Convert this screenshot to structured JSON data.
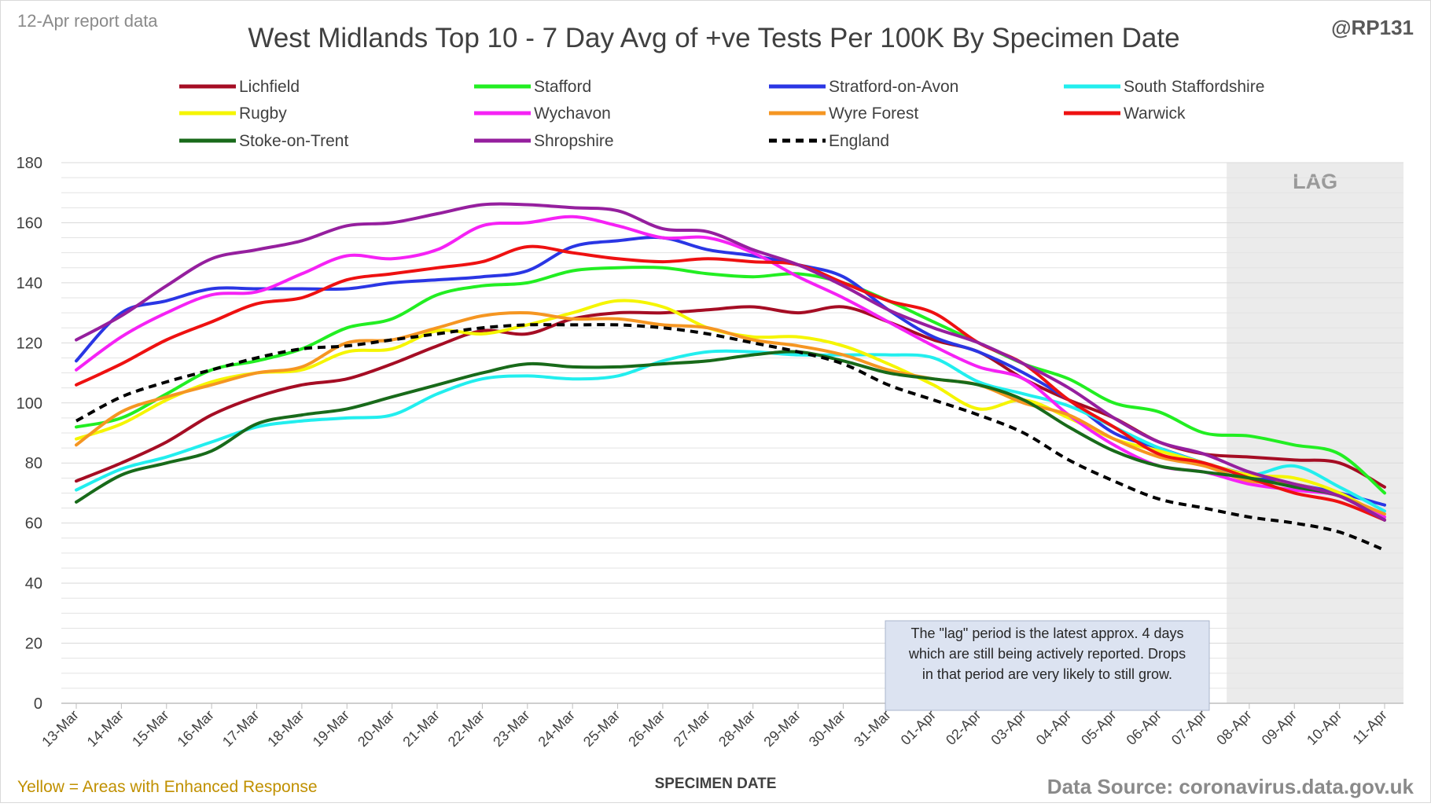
{
  "header": {
    "report_label": "12-Apr report data",
    "handle": "@RP131"
  },
  "footer": {
    "note": "Yellow = Areas with Enhanced Response",
    "source": "Data Source: coronavirus.data.gov.uk"
  },
  "colors": {
    "note_text": "#c09000",
    "lag_shade": "#ebebeb",
    "lag_text": "#9a9a9a",
    "annotation_fill": "#dce3f1",
    "axis_text": "#404040",
    "grid": "#e3e3e3"
  },
  "chart_data": {
    "type": "line",
    "title": "West Midlands Top 10 - 7 Day Avg of +ve Tests Per 100K By Specimen Date",
    "xlabel": "SPECIMEN DATE",
    "ylabel": "",
    "ylim": [
      0,
      180
    ],
    "yticks": [
      0,
      20,
      40,
      60,
      80,
      100,
      120,
      140,
      160,
      180
    ],
    "grid": "horizontal",
    "legend": "top",
    "lag_label": "LAG",
    "lag_range": [
      "08-Apr",
      "11-Apr"
    ],
    "annotation": [
      "The \"lag\" period is the latest approx. 4 days",
      "which are still being actively reported.  Drops",
      "in that period are very likely to still grow."
    ],
    "categories": [
      "13-Mar",
      "14-Mar",
      "15-Mar",
      "16-Mar",
      "17-Mar",
      "18-Mar",
      "19-Mar",
      "20-Mar",
      "21-Mar",
      "22-Mar",
      "23-Mar",
      "24-Mar",
      "25-Mar",
      "26-Mar",
      "27-Mar",
      "28-Mar",
      "29-Mar",
      "30-Mar",
      "31-Mar",
      "01-Apr",
      "02-Apr",
      "03-Apr",
      "04-Apr",
      "05-Apr",
      "06-Apr",
      "07-Apr",
      "08-Apr",
      "09-Apr",
      "10-Apr",
      "11-Apr"
    ],
    "series": [
      {
        "name": "Lichfield",
        "color": "#a50d24",
        "dashed": false,
        "values": [
          74,
          80,
          87,
          96,
          102,
          106,
          108,
          113,
          119,
          124,
          123,
          128,
          130,
          130,
          131,
          132,
          130,
          132,
          127,
          121,
          117,
          108,
          101,
          95,
          87,
          83,
          82,
          81,
          80,
          72
        ]
      },
      {
        "name": "Stafford",
        "color": "#22ee22",
        "dashed": false,
        "values": [
          92,
          95,
          103,
          111,
          114,
          118,
          125,
          128,
          136,
          139,
          140,
          144,
          145,
          145,
          143,
          142,
          143,
          140,
          134,
          127,
          120,
          113,
          108,
          100,
          97,
          90,
          89,
          86,
          83,
          70
        ]
      },
      {
        "name": "Stratford-on-Avon",
        "color": "#2a36e4",
        "dashed": false,
        "values": [
          114,
          130,
          134,
          138,
          138,
          138,
          138,
          140,
          141,
          142,
          144,
          152,
          154,
          155,
          151,
          149,
          146,
          142,
          131,
          122,
          117,
          110,
          101,
          90,
          85,
          80,
          76,
          73,
          70,
          66
        ]
      },
      {
        "name": "South Staffordshire",
        "color": "#22eeee",
        "dashed": false,
        "values": [
          71,
          78,
          82,
          87,
          92,
          94,
          95,
          96,
          103,
          108,
          109,
          108,
          109,
          114,
          117,
          117,
          116,
          116,
          116,
          115,
          107,
          103,
          99,
          92,
          85,
          80,
          76,
          79,
          72,
          64
        ]
      },
      {
        "name": "Rugby",
        "color": "#f5f500",
        "dashed": false,
        "values": [
          88,
          93,
          101,
          107,
          110,
          111,
          117,
          118,
          124,
          123,
          126,
          130,
          134,
          132,
          125,
          122,
          122,
          119,
          113,
          106,
          98,
          101,
          95,
          88,
          84,
          80,
          76,
          75,
          70,
          62
        ]
      },
      {
        "name": "Wychavon",
        "color": "#f522f5",
        "dashed": false,
        "values": [
          111,
          122,
          130,
          136,
          137,
          143,
          149,
          148,
          151,
          159,
          160,
          162,
          159,
          155,
          155,
          150,
          142,
          135,
          127,
          119,
          112,
          108,
          96,
          86,
          79,
          77,
          73,
          71,
          69,
          62
        ]
      },
      {
        "name": "Wyre Forest",
        "color": "#f59622",
        "dashed": false,
        "values": [
          86,
          97,
          102,
          106,
          110,
          112,
          120,
          121,
          125,
          129,
          130,
          128,
          128,
          126,
          125,
          121,
          119,
          116,
          111,
          108,
          106,
          100,
          96,
          88,
          82,
          79,
          74,
          73,
          69,
          63
        ]
      },
      {
        "name": "Warwick",
        "color": "#ee1111",
        "dashed": false,
        "values": [
          106,
          113,
          121,
          127,
          133,
          135,
          141,
          143,
          145,
          147,
          152,
          150,
          148,
          147,
          148,
          147,
          146,
          140,
          134,
          130,
          120,
          113,
          101,
          92,
          83,
          80,
          75,
          70,
          67,
          61
        ]
      },
      {
        "name": "Stoke-on-Trent",
        "color": "#186a1a",
        "dashed": false,
        "values": [
          67,
          76,
          80,
          84,
          93,
          96,
          98,
          102,
          106,
          110,
          113,
          112,
          112,
          113,
          114,
          116,
          117,
          114,
          110,
          108,
          106,
          101,
          92,
          84,
          79,
          77,
          75,
          72,
          69,
          61
        ]
      },
      {
        "name": "Shropshire",
        "color": "#951f9e",
        "dashed": false,
        "values": [
          121,
          129,
          139,
          148,
          151,
          154,
          159,
          160,
          163,
          166,
          166,
          165,
          164,
          158,
          157,
          151,
          146,
          139,
          131,
          125,
          120,
          113,
          105,
          95,
          87,
          83,
          77,
          73,
          69,
          61
        ]
      },
      {
        "name": "England",
        "color": "#000000",
        "dashed": true,
        "values": [
          94,
          102,
          107,
          111,
          115,
          118,
          119,
          121,
          123,
          125,
          126,
          126,
          126,
          125,
          123,
          120,
          117,
          113,
          106,
          101,
          96,
          90,
          81,
          74,
          68,
          65,
          62,
          60,
          57,
          51
        ]
      }
    ]
  }
}
